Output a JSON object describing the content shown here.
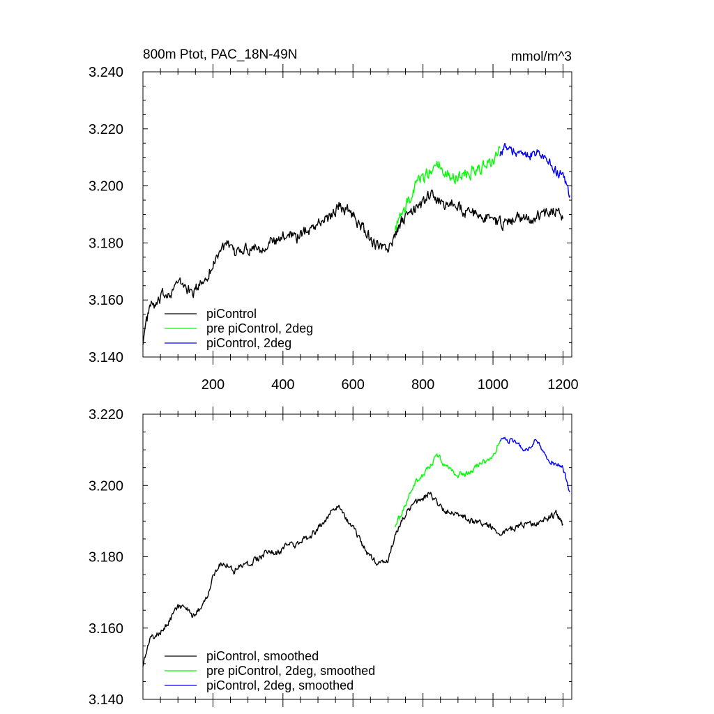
{
  "chart_data": [
    {
      "type": "line",
      "title": "800m Ptot, PAC_18N-49N",
      "units": "mmol/m^3",
      "xlim": [
        0,
        1225
      ],
      "ylim": [
        3.14,
        3.24
      ],
      "xticks": [
        200,
        400,
        600,
        800,
        1000,
        1200
      ],
      "xtick_labels": [
        "200",
        "400",
        "600",
        "800",
        "1000",
        "1200"
      ],
      "yticks": [
        3.14,
        3.16,
        3.18,
        3.2,
        3.22,
        3.24
      ],
      "ytick_labels": [
        "3.140",
        "3.160",
        "3.180",
        "3.200",
        "3.220",
        "3.240"
      ],
      "grid": false,
      "legend_position": "bottom-left",
      "series": [
        {
          "name": "piControl",
          "color": "#000000",
          "x": [
            0,
            20,
            40,
            60,
            80,
            100,
            120,
            140,
            160,
            180,
            200,
            220,
            240,
            260,
            280,
            300,
            320,
            340,
            360,
            380,
            400,
            420,
            440,
            460,
            480,
            500,
            520,
            540,
            560,
            580,
            600,
            620,
            640,
            660,
            680,
            700,
            720,
            740,
            760,
            780,
            800,
            820,
            840,
            860,
            880,
            900,
            920,
            940,
            960,
            980,
            1000,
            1020,
            1040,
            1060,
            1080,
            1100,
            1120,
            1140,
            1160,
            1180,
            1200
          ],
          "y": [
            3.146,
            3.158,
            3.158,
            3.162,
            3.163,
            3.166,
            3.165,
            3.162,
            3.165,
            3.168,
            3.172,
            3.178,
            3.179,
            3.176,
            3.178,
            3.178,
            3.179,
            3.178,
            3.181,
            3.18,
            3.182,
            3.184,
            3.182,
            3.184,
            3.185,
            3.187,
            3.188,
            3.19,
            3.193,
            3.192,
            3.19,
            3.186,
            3.183,
            3.18,
            3.178,
            3.178,
            3.182,
            3.188,
            3.19,
            3.192,
            3.194,
            3.197,
            3.195,
            3.193,
            3.194,
            3.193,
            3.191,
            3.19,
            3.19,
            3.189,
            3.188,
            3.187,
            3.187,
            3.188,
            3.189,
            3.188,
            3.189,
            3.19,
            3.191,
            3.192,
            3.189
          ],
          "noise": 0.0032
        },
        {
          "name": "pre piControl, 2deg",
          "color": "#00ff00",
          "x": [
            720,
            740,
            760,
            780,
            800,
            820,
            840,
            860,
            880,
            900,
            920,
            940,
            960,
            980,
            1000,
            1020
          ],
          "y": [
            3.186,
            3.19,
            3.195,
            3.2,
            3.203,
            3.205,
            3.208,
            3.206,
            3.204,
            3.203,
            3.204,
            3.205,
            3.206,
            3.207,
            3.209,
            3.213
          ],
          "noise": 0.0035
        },
        {
          "name": "piControl, 2deg",
          "color": "#0000ff",
          "x": [
            1020,
            1040,
            1060,
            1080,
            1100,
            1120,
            1140,
            1160,
            1180,
            1200,
            1220
          ],
          "y": [
            3.212,
            3.213,
            3.212,
            3.211,
            3.21,
            3.212,
            3.21,
            3.208,
            3.205,
            3.204,
            3.197
          ],
          "noise": 0.003
        }
      ]
    },
    {
      "type": "line",
      "title": "",
      "units": "",
      "xlim": [
        0,
        1225
      ],
      "ylim": [
        3.14,
        3.22
      ],
      "xticks": [
        200,
        400,
        600,
        800,
        1000,
        1200
      ],
      "yticks": [
        3.14,
        3.16,
        3.18,
        3.2,
        3.22
      ],
      "ytick_labels": [
        "3.140",
        "3.160",
        "3.180",
        "3.200",
        "3.220"
      ],
      "grid": false,
      "legend_position": "bottom-left",
      "series": [
        {
          "name": "piControl, smoothed",
          "color": "#000000",
          "x": [
            0,
            20,
            40,
            60,
            80,
            100,
            120,
            140,
            160,
            180,
            200,
            220,
            240,
            260,
            280,
            300,
            320,
            340,
            360,
            380,
            400,
            420,
            440,
            460,
            480,
            500,
            520,
            540,
            560,
            580,
            600,
            620,
            640,
            660,
            680,
            700,
            720,
            740,
            760,
            780,
            800,
            820,
            840,
            860,
            880,
            900,
            920,
            940,
            960,
            980,
            1000,
            1020,
            1040,
            1060,
            1080,
            1100,
            1120,
            1140,
            1160,
            1180,
            1200
          ],
          "y": [
            3.15,
            3.157,
            3.158,
            3.16,
            3.163,
            3.166,
            3.166,
            3.163,
            3.165,
            3.168,
            3.175,
            3.178,
            3.178,
            3.176,
            3.178,
            3.178,
            3.179,
            3.18,
            3.182,
            3.181,
            3.182,
            3.184,
            3.183,
            3.185,
            3.186,
            3.188,
            3.19,
            3.193,
            3.194,
            3.191,
            3.188,
            3.185,
            3.181,
            3.179,
            3.178,
            3.179,
            3.186,
            3.19,
            3.193,
            3.195,
            3.196,
            3.198,
            3.195,
            3.193,
            3.193,
            3.192,
            3.191,
            3.19,
            3.19,
            3.189,
            3.188,
            3.187,
            3.187,
            3.188,
            3.189,
            3.189,
            3.189,
            3.19,
            3.191,
            3.192,
            3.189
          ],
          "noise": 0.0014
        },
        {
          "name": "pre piControl, 2deg, smoothed",
          "color": "#00ff00",
          "x": [
            720,
            740,
            760,
            780,
            800,
            820,
            840,
            860,
            880,
            900,
            920,
            940,
            960,
            980,
            1000,
            1020
          ],
          "y": [
            3.189,
            3.192,
            3.197,
            3.201,
            3.203,
            3.205,
            3.209,
            3.206,
            3.204,
            3.203,
            3.203,
            3.204,
            3.206,
            3.207,
            3.208,
            3.213
          ],
          "noise": 0.0013
        },
        {
          "name": "piControl, 2deg, smoothed",
          "color": "#0000ff",
          "x": [
            1020,
            1040,
            1060,
            1080,
            1100,
            1120,
            1140,
            1160,
            1180,
            1200,
            1220
          ],
          "y": [
            3.213,
            3.213,
            3.212,
            3.211,
            3.21,
            3.213,
            3.21,
            3.207,
            3.206,
            3.205,
            3.198
          ],
          "noise": 0.0012
        }
      ]
    }
  ]
}
